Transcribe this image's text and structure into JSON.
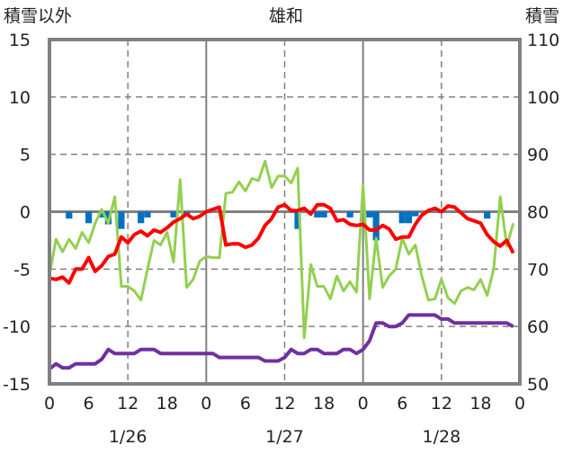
{
  "chart_data": {
    "type": "line",
    "title": "雄和",
    "left_axis_label": "積雪以外",
    "right_axis_label": "積雪",
    "ylim_left": [
      -15,
      15
    ],
    "yticks_left": [
      15,
      10,
      5,
      0,
      -5,
      -10,
      -15
    ],
    "ylim_right": [
      50,
      110
    ],
    "yticks_right": [
      110,
      100,
      90,
      80,
      70,
      60,
      50
    ],
    "x_range_hours": [
      0,
      72
    ],
    "xtick_labels": [
      "0",
      "6",
      "12",
      "18",
      "0",
      "6",
      "12",
      "18",
      "0",
      "6",
      "12",
      "18",
      "0"
    ],
    "date_labels": [
      "1/26",
      "1/27",
      "1/28"
    ],
    "grid": true,
    "colors": {
      "red": "#ff0000",
      "green": "#92d050",
      "purple": "#7030a0",
      "blue": "#0070c0",
      "axis": "#808080"
    },
    "series": [
      {
        "name": "red",
        "axis": "left",
        "values": [
          -5.8,
          -5.9,
          -5.7,
          -6.2,
          -5.0,
          -5.0,
          -4.0,
          -5.2,
          -4.7,
          -3.9,
          -3.7,
          -2.2,
          -2.7,
          -2.0,
          -1.7,
          -2.1,
          -1.6,
          -1.8,
          -1.4,
          -0.9,
          -0.6,
          -0.2,
          -0.6,
          -0.4,
          0,
          0.2,
          0.4,
          -2.9,
          -2.8,
          -2.8,
          -3.1,
          -2.9,
          -2.3,
          -1.2,
          -0.6,
          0.4,
          0.6,
          0.1,
          0.1,
          0.3,
          -0.2,
          0.6,
          0.6,
          0.3,
          -0.8,
          -0.7,
          -1.1,
          -1.2,
          -1.1,
          -1.6,
          -1.6,
          -1.2,
          -1.5,
          -2.4,
          -2.2,
          -2.2,
          -1.1,
          -0.3,
          0.1,
          0.3,
          0,
          0.5,
          0.4,
          -0.1,
          -0.6,
          -0.8,
          -1.0,
          -2.0,
          -2.6,
          -3.0,
          -2.5,
          -3.6
        ]
      },
      {
        "name": "green",
        "axis": "left",
        "values": [
          -5.5,
          -2.4,
          -3.5,
          -2.4,
          -3.2,
          -1.8,
          -2.7,
          -1.0,
          0.2,
          -1.0,
          1.3,
          -6.5,
          -6.5,
          -6.9,
          -7.7,
          -5.0,
          -2.5,
          -2.9,
          -1.8,
          -4.4,
          2.8,
          -6.6,
          -5.9,
          -4.3,
          -3.9,
          -4.0,
          -4.0,
          1.6,
          1.7,
          2.6,
          1.8,
          2.9,
          2.7,
          4.4,
          2.1,
          3.1,
          3.1,
          2.5,
          3.8,
          -11.0,
          -4.6,
          -6.5,
          -6.5,
          -7.6,
          -5.6,
          -6.9,
          -6.1,
          -7.0,
          2.3,
          -7.6,
          -2.3,
          -6.6,
          -5.6,
          -5.0,
          -2.3,
          -3.7,
          -2.9,
          -5.6,
          -7.7,
          -7.6,
          -5.9,
          -7.5,
          -8.0,
          -6.9,
          -6.6,
          -6.8,
          -5.9,
          -7.3,
          -5.0,
          1.3,
          -3.0,
          -1.0
        ]
      },
      {
        "name": "purple",
        "axis": "right",
        "values": [
          52.6,
          53.5,
          52.8,
          52.8,
          53.5,
          53.5,
          53.5,
          53.5,
          54.3,
          56,
          55.3,
          55.3,
          55.3,
          55.3,
          56,
          56,
          56,
          55.3,
          55.3,
          55.3,
          55.3,
          55.3,
          55.3,
          55.3,
          55.3,
          55.3,
          54.6,
          54.6,
          54.6,
          54.6,
          54.6,
          54.6,
          54.6,
          54,
          54,
          54,
          54.6,
          56,
          55.3,
          55.3,
          56,
          56,
          55.3,
          55.3,
          55.3,
          56,
          56,
          55.3,
          56,
          57.5,
          60.6,
          60.6,
          60,
          60,
          60.6,
          62,
          62,
          62,
          62,
          62,
          61.3,
          61.3,
          60.6,
          60.6,
          60.6,
          60.6,
          60.6,
          60.6,
          60.6,
          60.6,
          60.6,
          60
        ]
      },
      {
        "name": "blue",
        "type": "bar",
        "axis": "left",
        "hours": [
          3,
          6,
          8,
          9,
          11,
          14,
          15,
          19,
          21,
          38,
          41,
          42,
          46,
          49,
          50,
          54,
          55,
          56,
          67
        ],
        "values": [
          -0.6,
          -1.0,
          -0.5,
          -1.1,
          -1.5,
          -1.0,
          -0.5,
          -0.5,
          -0.4,
          -1.5,
          -0.5,
          -0.5,
          -0.5,
          -0.5,
          -2.5,
          -1.0,
          -1.0,
          -0.4,
          -0.6
        ]
      }
    ]
  }
}
